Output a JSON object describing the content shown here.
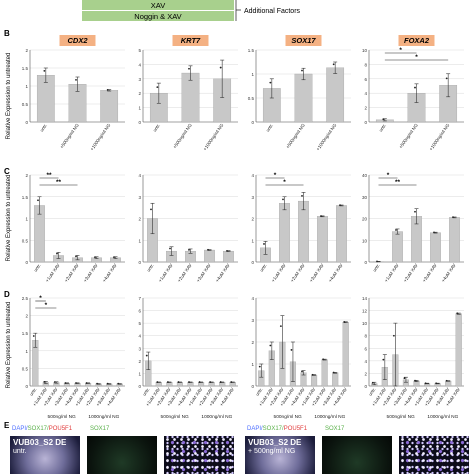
{
  "legend_top": {
    "factor_rows": [
      "XAV",
      "Noggin & XAV"
    ],
    "bracket_label": "Additional Factors"
  },
  "ylabel": "Relative Expression to untreated",
  "panel_letters": [
    "B",
    "C",
    "D",
    "E"
  ],
  "colors": {
    "bar": "#c8c8c8",
    "green": "#a8d08d",
    "orange": "#f4b183",
    "grid": "#d9d9d9"
  },
  "chart_data": [
    {
      "type": "bar",
      "panel": "B",
      "title": "CDX2",
      "categories": [
        "untr.",
        "+500ng/ml NG",
        "+1000ng/ml NG"
      ],
      "values": [
        1.3,
        1.05,
        0.88
      ],
      "errors": [
        0.2,
        0.2,
        0.02
      ],
      "ylim": [
        0,
        2
      ],
      "ticks": [
        0,
        0.5,
        1,
        1.5,
        2
      ],
      "significance": []
    },
    {
      "type": "bar",
      "panel": "B",
      "title": "KRT7",
      "categories": [
        "untr.",
        "+500ng/ml NG",
        "+1000ng/ml NG"
      ],
      "values": [
        2.0,
        3.4,
        3.0
      ],
      "errors": [
        0.7,
        0.5,
        1.3
      ],
      "ylim": [
        0,
        5
      ],
      "ticks": [
        0,
        1,
        2,
        3,
        4,
        5
      ],
      "significance": []
    },
    {
      "type": "bar",
      "panel": "B",
      "title": "SOX17",
      "categories": [
        "untr.",
        "+500ng/ml NG",
        "+1000ng/ml NG"
      ],
      "values": [
        0.7,
        1.0,
        1.13
      ],
      "errors": [
        0.2,
        0.12,
        0.12
      ],
      "ylim": [
        0,
        1.5
      ],
      "ticks": [
        0,
        0.5,
        1,
        1.5
      ],
      "significance": []
    },
    {
      "type": "bar",
      "panel": "B",
      "title": "FOXA2",
      "categories": [
        "untr.",
        "+500ng/ml NG",
        "+1000ng/ml NG"
      ],
      "values": [
        0.3,
        4.0,
        5.1
      ],
      "errors": [
        0.15,
        1.3,
        1.6
      ],
      "ylim": [
        0,
        10
      ],
      "ticks": [
        0,
        2,
        4,
        6,
        8,
        10
      ],
      "significance": [
        [
          "0",
          "1",
          "*"
        ],
        [
          "0",
          "2",
          "*"
        ]
      ]
    },
    {
      "type": "bar",
      "panel": "C",
      "categories": [
        "untr.",
        "+1uM XAV",
        "+2uM XAV",
        "+3uM XAV",
        "+4uM XAV"
      ],
      "values": [
        1.3,
        0.15,
        0.1,
        0.1,
        0.1
      ],
      "errors": [
        0.2,
        0.07,
        0.05,
        0.02,
        0.02
      ],
      "ylim": [
        0,
        2
      ],
      "ticks": [
        0,
        0.5,
        1,
        1.5,
        2
      ],
      "significance": [
        [
          "0",
          "1",
          "**"
        ],
        [
          "0",
          "2",
          "**"
        ]
      ]
    },
    {
      "type": "bar",
      "panel": "C",
      "categories": [
        "untr.",
        "+1uM XAV",
        "+2uM XAV",
        "+3uM XAV",
        "+4uM XAV"
      ],
      "values": [
        2.0,
        0.5,
        0.5,
        0.55,
        0.5
      ],
      "errors": [
        0.7,
        0.2,
        0.1,
        0.02,
        0.02
      ],
      "ylim": [
        0,
        4
      ],
      "ticks": [
        0,
        1,
        2,
        3,
        4
      ],
      "significance": []
    },
    {
      "type": "bar",
      "panel": "C",
      "categories": [
        "untr.",
        "+1uM XAV",
        "+2uM XAV",
        "+3uM XAV",
        "+4uM XAV"
      ],
      "values": [
        0.65,
        2.7,
        2.8,
        2.1,
        2.6
      ],
      "errors": [
        0.3,
        0.3,
        0.4,
        0.02,
        0.02
      ],
      "ylim": [
        0,
        4
      ],
      "ticks": [
        0,
        1,
        2,
        3,
        4
      ],
      "significance": [
        [
          "0",
          "1",
          "*"
        ],
        [
          "0",
          "2",
          "*"
        ]
      ]
    },
    {
      "type": "bar",
      "panel": "C",
      "categories": [
        "untr.",
        "+1uM XAV",
        "+2uM XAV",
        "+3uM XAV",
        "+4uM XAV"
      ],
      "values": [
        0.2,
        14.0,
        21.0,
        13.5,
        20.5
      ],
      "errors": [
        0.1,
        1.2,
        3.5,
        0.2,
        0.2
      ],
      "ylim": [
        0,
        40
      ],
      "ticks": [
        0,
        10,
        20,
        30,
        40
      ],
      "significance": [
        [
          "0",
          "1",
          "*"
        ],
        [
          "0",
          "2",
          "**"
        ]
      ]
    },
    {
      "type": "bar",
      "panel": "D",
      "categories": [
        "untr.",
        "+1uM XAV",
        "+2uM XAV",
        "+3uM XAV",
        "+4uM XAV",
        "+1uM XAV",
        "+2uM XAV",
        "+3uM XAV",
        "+4uM XAV"
      ],
      "group_labels": [
        "500ng/ml NG",
        "1000ng/ml NG"
      ],
      "values": [
        1.3,
        0.1,
        0.1,
        0.08,
        0.08,
        0.08,
        0.06,
        0.06,
        0.06
      ],
      "errors": [
        0.2,
        0.03,
        0.02,
        0.01,
        0.01,
        0.01,
        0.01,
        0.01,
        0.01
      ],
      "ylim": [
        0,
        2.5
      ],
      "ticks": [
        0,
        0.5,
        1,
        1.5,
        2,
        2.5
      ],
      "significance": [
        [
          "0",
          "1",
          "*"
        ],
        [
          "0",
          "2",
          "*"
        ]
      ]
    },
    {
      "type": "bar",
      "panel": "D",
      "categories": [
        "untr.",
        "+1uM XAV",
        "+2uM XAV",
        "+3uM XAV",
        "+4uM XAV",
        "+1uM XAV",
        "+2uM XAV",
        "+3uM XAV",
        "+4uM XAV"
      ],
      "group_labels": [
        "500ng/ml NG",
        "1000ng/ml NG"
      ],
      "values": [
        2.0,
        0.3,
        0.3,
        0.3,
        0.3,
        0.3,
        0.3,
        0.3,
        0.3
      ],
      "errors": [
        0.7,
        0.02,
        0.02,
        0.02,
        0.02,
        0.02,
        0.02,
        0.02,
        0.02
      ],
      "ylim": [
        0,
        7
      ],
      "ticks": [
        0,
        1,
        2,
        3,
        4,
        5,
        6,
        7
      ],
      "significance": []
    },
    {
      "type": "bar",
      "panel": "D",
      "categories": [
        "untr.",
        "+1uM XAV",
        "+2uM XAV",
        "+3uM XAV",
        "+4uM XAV",
        "+1uM XAV",
        "+2uM XAV",
        "+3uM XAV",
        "+4uM XAV"
      ],
      "group_labels": [
        "500ng/ml NG",
        "1000ng/ml NG"
      ],
      "values": [
        0.7,
        1.6,
        2.0,
        1.1,
        0.6,
        0.5,
        1.2,
        0.6,
        2.9
      ],
      "errors": [
        0.3,
        0.4,
        1.2,
        0.9,
        0.1,
        0.02,
        0.02,
        0.02,
        0.02
      ],
      "ylim": [
        0,
        4
      ],
      "ticks": [
        0,
        1,
        2,
        3,
        4
      ],
      "significance": []
    },
    {
      "type": "bar",
      "panel": "D",
      "categories": [
        "untr.",
        "+1uM XAV",
        "+2uM XAV",
        "+3uM XAV",
        "+4uM XAV",
        "+1uM XAV",
        "+2uM XAV",
        "+3uM XAV",
        "+4uM XAV"
      ],
      "group_labels": [
        "500ng/ml NG",
        "1000ng/ml NG"
      ],
      "values": [
        0.4,
        3.0,
        5.0,
        1.0,
        0.8,
        0.4,
        0.4,
        0.8,
        11.5
      ],
      "errors": [
        0.2,
        2.0,
        5.0,
        0.4,
        0.1,
        0.05,
        0.05,
        0.05,
        0.1
      ],
      "ylim": [
        0,
        14
      ],
      "ticks": [
        0,
        2,
        4,
        6,
        8,
        10,
        12,
        14
      ],
      "significance": []
    }
  ],
  "panel_e": {
    "left": {
      "stain_dapi": "DAPI/",
      "stain_sox17": "SOX17/",
      "stain_pou5f1": "POU5F1",
      "stain_green": "SOX17",
      "sample": "VUB03_S2 DE",
      "condition": "untr."
    },
    "right": {
      "stain_dapi": "DAPI/",
      "stain_sox17": "SOX17/",
      "stain_pou5f1": "POU5F1",
      "stain_green": "SOX17",
      "sample": "VUB03_S2 DE",
      "condition": "+ 500ng/ml NG"
    }
  }
}
